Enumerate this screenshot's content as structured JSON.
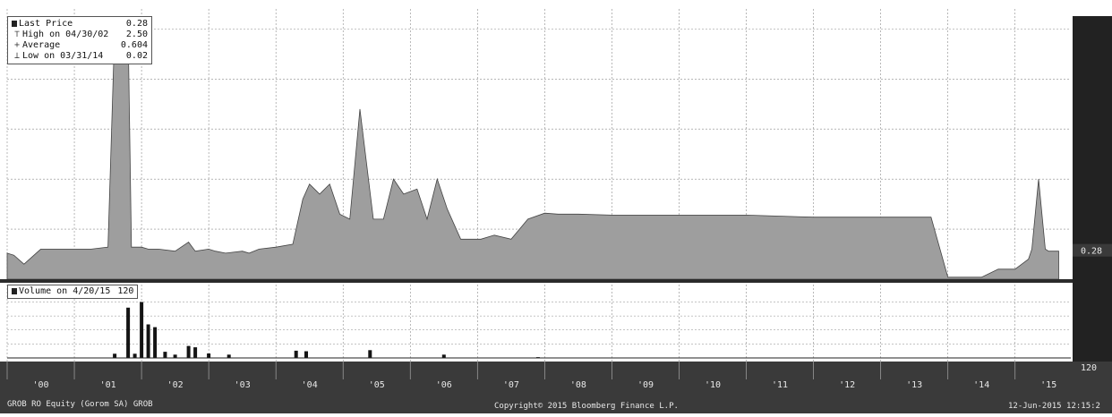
{
  "chart_data": [
    {
      "type": "area",
      "legend": [
        {
          "label": "Last Price",
          "value": "0.28"
        },
        {
          "label": "High on 04/30/02",
          "value": "2.50"
        },
        {
          "label": "Average",
          "value": "0.604"
        },
        {
          "label": "Low on 03/31/14",
          "value": "0.02"
        }
      ],
      "last_value_label": "0.28",
      "grid": true,
      "legend_position": "top-left",
      "series": [
        {
          "x": [
            2000.0,
            2000.1,
            2000.25,
            2000.5,
            2000.75,
            2001.0,
            2001.25,
            2001.5,
            2001.6,
            2001.8,
            2001.85,
            2002.0,
            2002.1,
            2002.25,
            2002.5,
            2002.7,
            2002.8,
            2003.0,
            2003.1,
            2003.25,
            2003.5,
            2003.6,
            2003.75,
            2004.0,
            2004.25,
            2004.4,
            2004.5,
            2004.65,
            2004.8,
            2004.95,
            2005.1,
            2005.25,
            2005.45,
            2005.6,
            2005.75,
            2005.9,
            2006.1,
            2006.25,
            2006.4,
            2006.55,
            2006.75,
            2006.9,
            2007.05,
            2007.25,
            2007.5,
            2007.75,
            2008.0,
            2008.2,
            2008.5,
            2009.0,
            2010.0,
            2011.0,
            2012.0,
            2013.0,
            2013.75,
            2014.0,
            2014.25,
            2014.5,
            2014.75,
            2015.0,
            2015.2,
            2015.25,
            2015.35,
            2015.45,
            2015.5,
            2015.65
          ],
          "y": [
            0.26,
            0.24,
            0.15,
            0.3,
            0.3,
            0.3,
            0.3,
            0.32,
            2.5,
            2.5,
            0.32,
            0.32,
            0.3,
            0.3,
            0.28,
            0.37,
            0.28,
            0.3,
            0.28,
            0.26,
            0.28,
            0.26,
            0.3,
            0.32,
            0.35,
            0.8,
            0.95,
            0.85,
            0.95,
            0.65,
            0.6,
            1.7,
            0.6,
            0.6,
            1.0,
            0.85,
            0.9,
            0.6,
            1.0,
            0.7,
            0.4,
            0.4,
            0.4,
            0.44,
            0.4,
            0.6,
            0.66,
            0.65,
            0.65,
            0.64,
            0.64,
            0.64,
            0.62,
            0.62,
            0.62,
            0.02,
            0.02,
            0.02,
            0.1,
            0.1,
            0.2,
            0.3,
            1.0,
            0.3,
            0.28,
            0.28
          ]
        }
      ]
    },
    {
      "type": "bar",
      "legend": [
        {
          "label": "Volume on 4/20/15",
          "value": "120"
        }
      ],
      "last_value_label": "120",
      "grid": true,
      "legend_position": "top-left",
      "series": [
        {
          "x": [
            2001.6,
            2001.8,
            2001.9,
            2002.0,
            2002.1,
            2002.2,
            2002.35,
            2002.5,
            2002.7,
            2002.8,
            2003.0,
            2003.3,
            2004.3,
            2004.45,
            2005.4,
            2006.5,
            2007.9,
            2014.8,
            2015.3
          ],
          "y": [
            1500,
            18000,
            1500,
            20000,
            12000,
            11000,
            2200,
            1200,
            4300,
            3800,
            1600,
            1200,
            2600,
            2400,
            2800,
            1200,
            300,
            150,
            120
          ]
        }
      ]
    }
  ],
  "x_axis": {
    "ticks": [
      "'00",
      "'01",
      "'02",
      "'03",
      "'04",
      "'05",
      "'06",
      "'07",
      "'08",
      "'09",
      "'10",
      "'11",
      "'12",
      "'13",
      "'14",
      "'15"
    ]
  },
  "footer": {
    "left": "GROB RO Equity (Gorom SA) GROB",
    "center": "Copyright© 2015 Bloomberg Finance L.P.",
    "right": "12-Jun-2015 12:15:2"
  },
  "colors": {
    "area_fill": "#9e9e9e",
    "area_stroke": "#444444",
    "grid": "#8a8a8a",
    "right_panel": "#222222",
    "bars": "#141414",
    "axis_band": "#3a3a3a"
  }
}
